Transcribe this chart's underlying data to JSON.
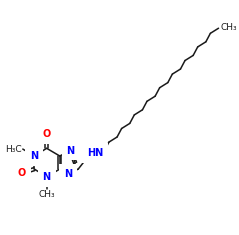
{
  "background_color": "#ffffff",
  "bond_color": "#1a1a1a",
  "nitrogen_color": "#0000ff",
  "oxygen_color": "#ff0000",
  "font_size_atoms": 7,
  "font_size_methyl": 6.5,
  "lw": 1.1
}
